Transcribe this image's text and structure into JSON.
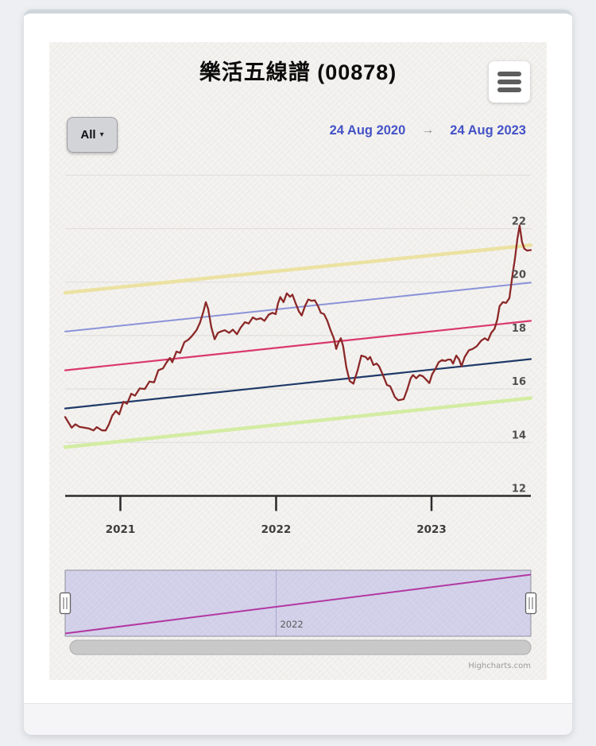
{
  "header": {
    "title": "樂活五線譜 (00878)"
  },
  "toolbar": {
    "range_button": "All",
    "range_caret": "▾",
    "date_from": "24 Aug 2020",
    "date_arrow": "→",
    "date_to": "24 Aug 2023"
  },
  "page": {
    "credits": "Highcharts.com"
  },
  "colors": {
    "plus2sd": "#ebe2a2",
    "plus1sd": "#8b93d8",
    "trend": "#d9396e",
    "minus1sd": "#1f3a68",
    "minus2sd": "#d3eca3",
    "price": "#8b2828",
    "navigator_line": "#b238a2",
    "navigator_mask": "rgba(108,108,216,0.24)",
    "date_text": "#4452c6",
    "axis": "#2a2a2a",
    "grid": "#e1dfdb"
  },
  "chart_data": {
    "type": "line",
    "title": "樂活五線譜 (00878)",
    "x_range": [
      "24 Aug 2020",
      "24 Aug 2023"
    ],
    "ylim": [
      12,
      24
    ],
    "grid": true,
    "y_ticks": [
      22,
      20,
      18,
      16,
      14,
      12
    ],
    "x_ticks": [
      {
        "label": "2021",
        "t": 0.1186
      },
      {
        "label": "2022",
        "t": 0.453
      },
      {
        "label": "2023",
        "t": 0.7867
      }
    ],
    "series": [
      {
        "name": "minus2sd",
        "color": "#d3eca3",
        "width": 4.5,
        "points": [
          [
            0,
            13.82
          ],
          [
            1,
            15.66
          ]
        ]
      },
      {
        "name": "minus1sd",
        "color": "#1f3a68",
        "width": 2.2,
        "points": [
          [
            0,
            15.27
          ],
          [
            1,
            17.12
          ]
        ]
      },
      {
        "name": "trend",
        "color": "#d9396e",
        "width": 2.2,
        "points": [
          [
            0,
            16.7
          ],
          [
            1,
            18.55
          ]
        ]
      },
      {
        "name": "plus1sd",
        "color": "#8b93d8",
        "width": 2,
        "points": [
          [
            0,
            18.15
          ],
          [
            1,
            19.98
          ]
        ]
      },
      {
        "name": "plus2sd",
        "color": "#ebe2a2",
        "width": 4.5,
        "points": [
          [
            0,
            19.6
          ],
          [
            1,
            21.38
          ]
        ]
      },
      {
        "name": "price",
        "color": "#8b2828",
        "width": 2.3,
        "points": [
          [
            0,
            14.95
          ],
          [
            0.007,
            14.75
          ],
          [
            0.014,
            14.55
          ],
          [
            0.022,
            14.68
          ],
          [
            0.031,
            14.58
          ],
          [
            0.041,
            14.55
          ],
          [
            0.051,
            14.52
          ],
          [
            0.061,
            14.45
          ],
          [
            0.068,
            14.57
          ],
          [
            0.079,
            14.45
          ],
          [
            0.087,
            14.45
          ],
          [
            0.094,
            14.68
          ],
          [
            0.101,
            15.0
          ],
          [
            0.109,
            15.18
          ],
          [
            0.116,
            15.05
          ],
          [
            0.125,
            15.52
          ],
          [
            0.133,
            15.45
          ],
          [
            0.142,
            15.82
          ],
          [
            0.15,
            15.75
          ],
          [
            0.16,
            16.02
          ],
          [
            0.171,
            16.0
          ],
          [
            0.181,
            16.28
          ],
          [
            0.191,
            16.25
          ],
          [
            0.2,
            16.7
          ],
          [
            0.21,
            16.77
          ],
          [
            0.218,
            17.0
          ],
          [
            0.225,
            17.16
          ],
          [
            0.23,
            17.0
          ],
          [
            0.239,
            17.4
          ],
          [
            0.247,
            17.35
          ],
          [
            0.256,
            17.75
          ],
          [
            0.265,
            17.85
          ],
          [
            0.273,
            18.0
          ],
          [
            0.282,
            18.2
          ],
          [
            0.29,
            18.5
          ],
          [
            0.297,
            18.9
          ],
          [
            0.302,
            19.25
          ],
          [
            0.307,
            19.0
          ],
          [
            0.314,
            18.3
          ],
          [
            0.321,
            17.86
          ],
          [
            0.328,
            18.1
          ],
          [
            0.334,
            18.15
          ],
          [
            0.343,
            18.2
          ],
          [
            0.352,
            18.1
          ],
          [
            0.36,
            18.22
          ],
          [
            0.369,
            18.05
          ],
          [
            0.377,
            18.3
          ],
          [
            0.386,
            18.5
          ],
          [
            0.394,
            18.45
          ],
          [
            0.403,
            18.68
          ],
          [
            0.411,
            18.6
          ],
          [
            0.42,
            18.65
          ],
          [
            0.428,
            18.55
          ],
          [
            0.437,
            18.78
          ],
          [
            0.445,
            18.85
          ],
          [
            0.452,
            18.8
          ],
          [
            0.457,
            19.2
          ],
          [
            0.462,
            19.44
          ],
          [
            0.469,
            19.25
          ],
          [
            0.476,
            19.58
          ],
          [
            0.483,
            19.45
          ],
          [
            0.488,
            19.53
          ],
          [
            0.495,
            19.2
          ],
          [
            0.502,
            18.9
          ],
          [
            0.508,
            18.75
          ],
          [
            0.515,
            19.1
          ],
          [
            0.522,
            19.35
          ],
          [
            0.529,
            19.3
          ],
          [
            0.536,
            19.32
          ],
          [
            0.543,
            19.1
          ],
          [
            0.549,
            18.85
          ],
          [
            0.556,
            18.8
          ],
          [
            0.563,
            18.55
          ],
          [
            0.57,
            18.2
          ],
          [
            0.577,
            17.9
          ],
          [
            0.582,
            17.5
          ],
          [
            0.587,
            17.75
          ],
          [
            0.592,
            17.9
          ],
          [
            0.597,
            17.6
          ],
          [
            0.604,
            16.8
          ],
          [
            0.611,
            16.3
          ],
          [
            0.619,
            16.2
          ],
          [
            0.628,
            16.7
          ],
          [
            0.636,
            17.25
          ],
          [
            0.645,
            17.2
          ],
          [
            0.65,
            17.1
          ],
          [
            0.655,
            17.2
          ],
          [
            0.662,
            16.9
          ],
          [
            0.669,
            16.95
          ],
          [
            0.674,
            16.85
          ],
          [
            0.683,
            16.5
          ],
          [
            0.691,
            16.15
          ],
          [
            0.698,
            16.1
          ],
          [
            0.703,
            15.9
          ],
          [
            0.708,
            15.7
          ],
          [
            0.715,
            15.58
          ],
          [
            0.722,
            15.6
          ],
          [
            0.727,
            15.62
          ],
          [
            0.735,
            16.0
          ],
          [
            0.742,
            16.4
          ],
          [
            0.747,
            16.52
          ],
          [
            0.754,
            16.4
          ],
          [
            0.761,
            16.52
          ],
          [
            0.768,
            16.48
          ],
          [
            0.775,
            16.35
          ],
          [
            0.782,
            16.22
          ],
          [
            0.788,
            16.55
          ],
          [
            0.795,
            16.75
          ],
          [
            0.802,
            17.0
          ],
          [
            0.809,
            17.08
          ],
          [
            0.816,
            17.05
          ],
          [
            0.822,
            17.1
          ],
          [
            0.828,
            17.1
          ],
          [
            0.833,
            16.95
          ],
          [
            0.84,
            17.25
          ],
          [
            0.846,
            17.1
          ],
          [
            0.851,
            16.85
          ],
          [
            0.858,
            17.2
          ],
          [
            0.867,
            17.45
          ],
          [
            0.875,
            17.5
          ],
          [
            0.884,
            17.6
          ],
          [
            0.893,
            17.8
          ],
          [
            0.901,
            17.9
          ],
          [
            0.908,
            17.82
          ],
          [
            0.915,
            18.1
          ],
          [
            0.922,
            18.25
          ],
          [
            0.928,
            18.6
          ],
          [
            0.933,
            19.1
          ],
          [
            0.94,
            19.25
          ],
          [
            0.947,
            19.22
          ],
          [
            0.954,
            19.4
          ],
          [
            0.961,
            20.3
          ],
          [
            0.966,
            20.9
          ],
          [
            0.971,
            21.6
          ],
          [
            0.976,
            22.12
          ],
          [
            0.981,
            21.5
          ],
          [
            0.986,
            21.25
          ],
          [
            0.992,
            21.18
          ],
          [
            1,
            21.2
          ]
        ]
      }
    ],
    "navigator": {
      "label": "2022",
      "label_t": 0.453,
      "series": {
        "name": "trend",
        "start": 16.7,
        "end": 18.55
      },
      "color": "#b238a2"
    }
  }
}
